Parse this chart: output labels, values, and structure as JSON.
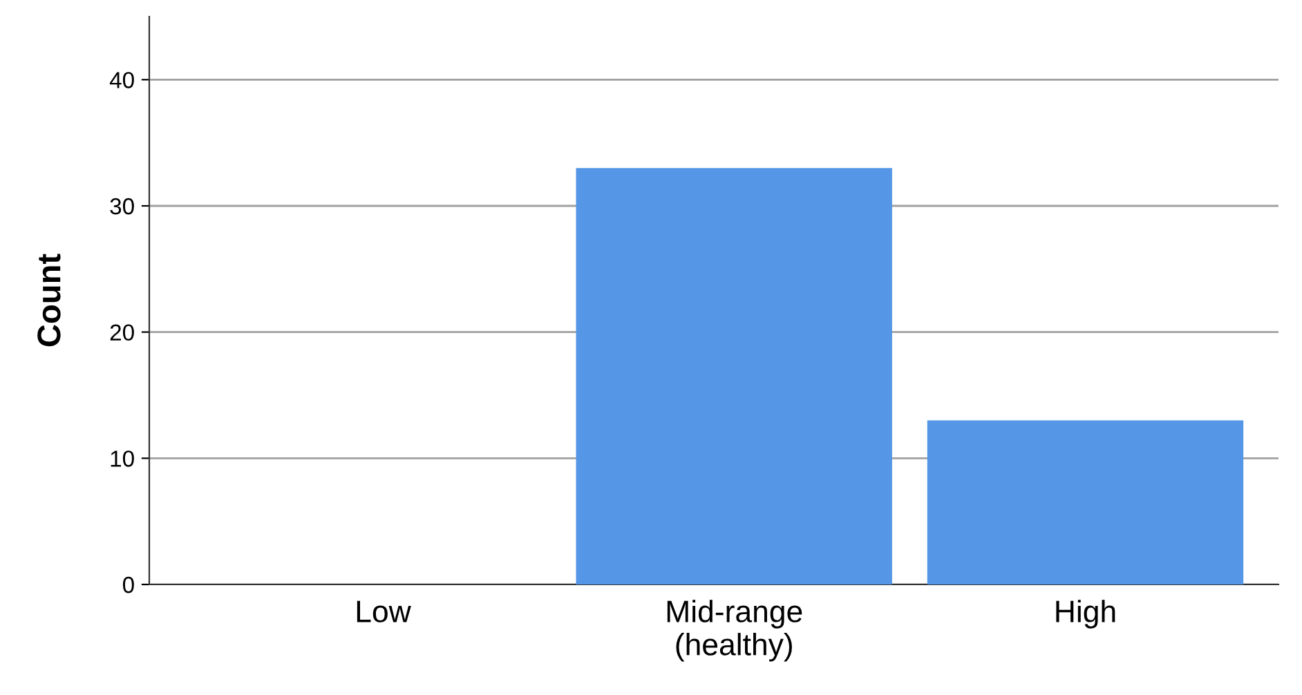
{
  "chart_data": {
    "type": "bar",
    "ylabel": "Count",
    "categories": [
      "Low",
      "Mid-range\n(healthy)",
      "High"
    ],
    "values": [
      0,
      33,
      13
    ],
    "color": "#5596e6",
    "ylim": [
      0,
      45
    ],
    "yticks": [
      0,
      10,
      20,
      30,
      40
    ],
    "grid": "y"
  }
}
